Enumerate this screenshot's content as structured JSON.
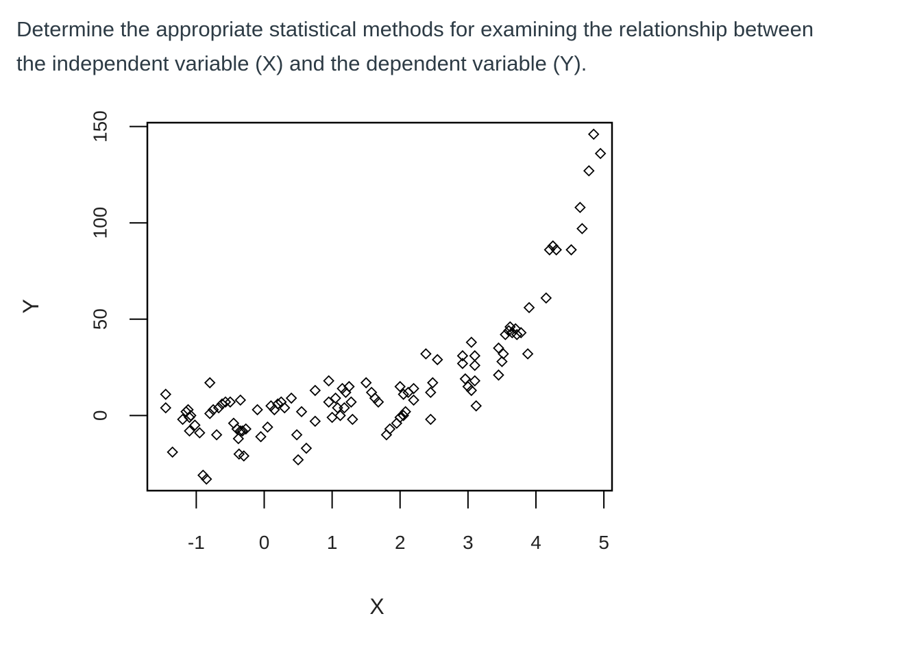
{
  "question": {
    "line1": "Determine the appropriate statistical methods for examining the relationship between",
    "line2": "the independent variable (X) and the dependent variable (Y)."
  },
  "chart_data": {
    "type": "scatter",
    "xlabel": "X",
    "ylabel": "Y",
    "xlim": [
      -1.72,
      5.12
    ],
    "ylim": [
      -39,
      152
    ],
    "xticks": [
      -1,
      0,
      1,
      2,
      3,
      4,
      5
    ],
    "yticks": [
      0,
      50,
      100,
      150
    ],
    "xtick_labels": [
      "-1",
      "0",
      "1",
      "2",
      "3",
      "4",
      "5"
    ],
    "ytick_labels": [
      "0",
      "50",
      "100",
      "150"
    ],
    "marker": "open-diamond",
    "color": "#000000",
    "grid": false,
    "points": [
      [
        -1.45,
        11
      ],
      [
        -1.45,
        4
      ],
      [
        -1.35,
        -19
      ],
      [
        -1.2,
        -2
      ],
      [
        -1.15,
        2
      ],
      [
        -1.12,
        3
      ],
      [
        -1.1,
        -1
      ],
      [
        -1.08,
        0
      ],
      [
        -1.1,
        -8
      ],
      [
        -1.02,
        -5
      ],
      [
        -0.95,
        -9
      ],
      [
        -0.9,
        -31
      ],
      [
        -0.85,
        -33
      ],
      [
        -0.8,
        17
      ],
      [
        -0.8,
        1
      ],
      [
        -0.75,
        3
      ],
      [
        -0.7,
        -10
      ],
      [
        -0.67,
        4
      ],
      [
        -0.62,
        6
      ],
      [
        -0.57,
        7
      ],
      [
        -0.5,
        7
      ],
      [
        -0.45,
        -4
      ],
      [
        -0.4,
        -7
      ],
      [
        -0.38,
        -12
      ],
      [
        -0.37,
        -20
      ],
      [
        -0.35,
        -8
      ],
      [
        -0.35,
        8
      ],
      [
        -0.32,
        -8
      ],
      [
        -0.3,
        -21
      ],
      [
        -0.27,
        -7
      ],
      [
        -0.1,
        3
      ],
      [
        -0.05,
        -11
      ],
      [
        0.05,
        -6
      ],
      [
        0.1,
        5
      ],
      [
        0.15,
        3
      ],
      [
        0.2,
        6
      ],
      [
        0.25,
        7
      ],
      [
        0.3,
        4
      ],
      [
        0.4,
        9
      ],
      [
        0.48,
        -10
      ],
      [
        0.55,
        2
      ],
      [
        0.5,
        -23
      ],
      [
        0.62,
        -17
      ],
      [
        0.75,
        13
      ],
      [
        0.75,
        -3
      ],
      [
        0.95,
        18
      ],
      [
        0.95,
        7
      ],
      [
        1.0,
        -1
      ],
      [
        1.05,
        9
      ],
      [
        1.08,
        4
      ],
      [
        1.12,
        0
      ],
      [
        1.15,
        14
      ],
      [
        1.18,
        4
      ],
      [
        1.2,
        12
      ],
      [
        1.25,
        15
      ],
      [
        1.28,
        7
      ],
      [
        1.3,
        -2
      ],
      [
        1.5,
        17
      ],
      [
        1.58,
        12
      ],
      [
        1.63,
        9
      ],
      [
        1.68,
        7
      ],
      [
        1.8,
        -10
      ],
      [
        1.85,
        -7
      ],
      [
        1.95,
        -4
      ],
      [
        2.0,
        -1
      ],
      [
        2.0,
        15
      ],
      [
        2.05,
        11
      ],
      [
        2.05,
        0
      ],
      [
        2.08,
        2
      ],
      [
        2.12,
        12
      ],
      [
        2.2,
        14
      ],
      [
        2.2,
        8
      ],
      [
        2.38,
        32
      ],
      [
        2.45,
        12
      ],
      [
        2.45,
        -2
      ],
      [
        2.48,
        17
      ],
      [
        2.55,
        29
      ],
      [
        2.92,
        31
      ],
      [
        2.92,
        27
      ],
      [
        2.96,
        19
      ],
      [
        3.0,
        15
      ],
      [
        3.05,
        13
      ],
      [
        3.05,
        38
      ],
      [
        3.1,
        31
      ],
      [
        3.1,
        26
      ],
      [
        3.1,
        18
      ],
      [
        3.12,
        5
      ],
      [
        3.45,
        35
      ],
      [
        3.45,
        21
      ],
      [
        3.5,
        28
      ],
      [
        3.52,
        32
      ],
      [
        3.55,
        42
      ],
      [
        3.6,
        44
      ],
      [
        3.62,
        46
      ],
      [
        3.65,
        43
      ],
      [
        3.7,
        45
      ],
      [
        3.72,
        42
      ],
      [
        3.78,
        43
      ],
      [
        3.88,
        32
      ],
      [
        3.9,
        56
      ],
      [
        4.15,
        61
      ],
      [
        4.2,
        86
      ],
      [
        4.25,
        88
      ],
      [
        4.3,
        86
      ],
      [
        4.52,
        86
      ],
      [
        4.65,
        108
      ],
      [
        4.68,
        97
      ],
      [
        4.78,
        127
      ],
      [
        4.85,
        146
      ],
      [
        4.95,
        136
      ]
    ]
  }
}
